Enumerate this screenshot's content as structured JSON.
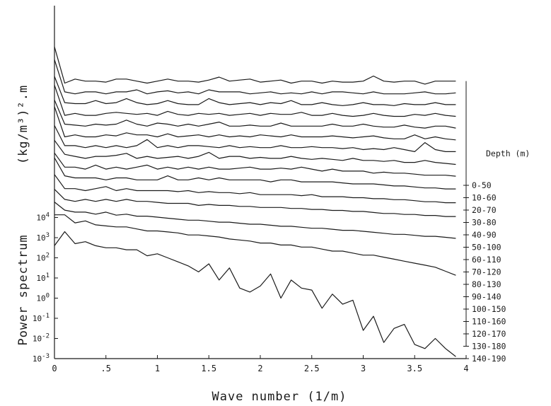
{
  "chart_data": {
    "type": "line",
    "title": "",
    "xlabel": "Wave number (1/m)",
    "ylabel_upper": "(kg/m³)².m",
    "ylabel_lower": "Power spectrum",
    "xlim": [
      0,
      4
    ],
    "ylim_exponent": [
      -3,
      4.2
    ],
    "y_scale": "log",
    "x_ticks": [
      "0",
      ".5",
      "1",
      "1.5",
      "2",
      "2.5",
      "3",
      "3.5",
      "4"
    ],
    "x_tick_values": [
      0,
      0.5,
      1,
      1.5,
      2,
      2.5,
      3,
      3.5,
      4
    ],
    "y_ticks": [
      {
        "exp": 4,
        "base": "10",
        "sup": "4"
      },
      {
        "exp": 3,
        "base": "10",
        "sup": "3"
      },
      {
        "exp": 2,
        "base": "10",
        "sup": "2"
      },
      {
        "exp": 1,
        "base": "10",
        "sup": "1"
      },
      {
        "exp": 0,
        "base": "10",
        "sup": "0"
      },
      {
        "exp": -1,
        "base": "10",
        "sup": "-1"
      },
      {
        "exp": -2,
        "base": "10",
        "sup": "-2"
      },
      {
        "exp": -3,
        "base": "10",
        "sup": "-3"
      }
    ],
    "legend_title": "Depth (m)",
    "legend_placement": "right",
    "grid": false,
    "stacked_offset_note": "curves offset vertically; only the lowest (140-190) is on the absolute scale",
    "x": [
      0.0,
      0.1,
      0.2,
      0.3,
      0.4,
      0.5,
      0.6,
      0.7,
      0.8,
      0.9,
      1.0,
      1.1,
      1.2,
      1.3,
      1.4,
      1.5,
      1.6,
      1.7,
      1.8,
      1.9,
      2.0,
      2.1,
      2.2,
      2.3,
      2.4,
      2.5,
      2.6,
      2.7,
      2.8,
      2.9,
      3.0,
      3.1,
      3.2,
      3.3,
      3.4,
      3.5,
      3.6,
      3.7,
      3.8,
      3.9
    ],
    "series": [
      {
        "name": "0-50",
        "values": [
          5.0,
          3.2,
          3.4,
          3.3,
          3.3,
          3.25,
          3.4,
          3.4,
          3.3,
          3.2,
          3.3,
          3.4,
          3.3,
          3.3,
          3.25,
          3.35,
          3.5,
          3.3,
          3.35,
          3.4,
          3.25,
          3.3,
          3.35,
          3.2,
          3.3,
          3.3,
          3.2,
          3.3,
          3.25,
          3.25,
          3.3,
          3.55,
          3.3,
          3.25,
          3.3,
          3.3,
          3.15,
          3.3,
          3.3,
          3.3
        ]
      },
      {
        "name": "10-60",
        "values": [
          4.9,
          3.3,
          3.2,
          3.3,
          3.3,
          3.2,
          3.3,
          3.3,
          3.4,
          3.2,
          3.3,
          3.35,
          3.25,
          3.3,
          3.2,
          3.4,
          3.3,
          3.3,
          3.3,
          3.2,
          3.25,
          3.3,
          3.2,
          3.25,
          3.2,
          3.3,
          3.2,
          3.3,
          3.3,
          3.25,
          3.2,
          3.3,
          3.2,
          3.2,
          3.2,
          3.25,
          3.3,
          3.2,
          3.2,
          3.25
        ]
      },
      {
        "name": "20-70",
        "values": [
          4.6,
          3.3,
          3.25,
          3.25,
          3.4,
          3.25,
          3.3,
          3.5,
          3.3,
          3.2,
          3.25,
          3.4,
          3.25,
          3.2,
          3.2,
          3.5,
          3.3,
          3.2,
          3.25,
          3.3,
          3.2,
          3.3,
          3.25,
          3.4,
          3.2,
          3.2,
          3.3,
          3.2,
          3.15,
          3.2,
          3.3,
          3.2,
          3.2,
          3.15,
          3.25,
          3.2,
          3.2,
          3.3,
          3.2,
          3.2
        ]
      },
      {
        "name": "30-80",
        "values": [
          4.7,
          3.2,
          3.3,
          3.2,
          3.2,
          3.3,
          3.35,
          3.3,
          3.25,
          3.3,
          3.2,
          3.4,
          3.25,
          3.2,
          3.3,
          3.25,
          3.3,
          3.2,
          3.25,
          3.3,
          3.2,
          3.3,
          3.25,
          3.25,
          3.35,
          3.2,
          3.2,
          3.3,
          3.2,
          3.15,
          3.2,
          3.3,
          3.2,
          3.15,
          3.15,
          3.25,
          3.2,
          3.3,
          3.2,
          3.15
        ]
      },
      {
        "name": "40-90",
        "values": [
          4.5,
          3.3,
          3.25,
          3.2,
          3.3,
          3.25,
          3.3,
          3.5,
          3.3,
          3.2,
          3.35,
          3.3,
          3.2,
          3.3,
          3.2,
          3.3,
          3.4,
          3.2,
          3.2,
          3.25,
          3.2,
          3.2,
          3.35,
          3.2,
          3.2,
          3.2,
          3.2,
          3.3,
          3.2,
          3.2,
          3.3,
          3.2,
          3.15,
          3.15,
          3.25,
          3.15,
          3.1,
          3.2,
          3.2,
          3.1
        ]
      },
      {
        "name": "50-100",
        "values": [
          4.7,
          3.2,
          3.3,
          3.2,
          3.2,
          3.3,
          3.25,
          3.4,
          3.3,
          3.3,
          3.2,
          3.35,
          3.2,
          3.25,
          3.3,
          3.2,
          3.3,
          3.2,
          3.25,
          3.2,
          3.3,
          3.25,
          3.2,
          3.3,
          3.2,
          3.2,
          3.2,
          3.25,
          3.2,
          3.15,
          3.2,
          3.25,
          3.15,
          3.1,
          3.1,
          3.3,
          3.1,
          3.2,
          3.1,
          3.05
        ]
      },
      {
        "name": "60-110",
        "values": [
          4.3,
          3.3,
          3.3,
          3.2,
          3.3,
          3.2,
          3.3,
          3.2,
          3.3,
          3.6,
          3.2,
          3.3,
          3.2,
          3.3,
          3.3,
          3.25,
          3.2,
          3.3,
          3.2,
          3.25,
          3.2,
          3.2,
          3.3,
          3.2,
          3.2,
          3.25,
          3.2,
          3.2,
          3.15,
          3.2,
          3.1,
          3.15,
          3.1,
          3.2,
          3.1,
          3.0,
          3.45,
          3.1,
          3.0,
          3.0
        ]
      },
      {
        "name": "70-120",
        "values": [
          4.1,
          3.4,
          3.3,
          3.2,
          3.3,
          3.3,
          3.35,
          3.45,
          3.2,
          3.3,
          3.2,
          3.25,
          3.3,
          3.2,
          3.3,
          3.5,
          3.2,
          3.3,
          3.3,
          3.2,
          3.25,
          3.2,
          3.2,
          3.3,
          3.2,
          3.15,
          3.2,
          3.15,
          3.1,
          3.2,
          3.1,
          3.1,
          3.05,
          3.1,
          3.0,
          3.0,
          3.1,
          3.0,
          2.95,
          2.9
        ]
      },
      {
        "name": "80-130",
        "values": [
          4.0,
          3.3,
          3.3,
          3.2,
          3.4,
          3.2,
          3.3,
          3.2,
          3.3,
          3.4,
          3.2,
          3.3,
          3.2,
          3.3,
          3.2,
          3.3,
          3.2,
          3.2,
          3.25,
          3.3,
          3.2,
          3.2,
          3.25,
          3.2,
          3.3,
          3.2,
          3.1,
          3.2,
          3.1,
          3.1,
          3.1,
          3.0,
          3.05,
          3.0,
          3.0,
          2.95,
          2.9,
          2.9,
          2.9,
          2.85
        ]
      },
      {
        "name": "90-140",
        "values": [
          4.3,
          3.4,
          3.3,
          3.3,
          3.3,
          3.2,
          3.3,
          3.3,
          3.2,
          3.2,
          3.2,
          3.4,
          3.2,
          3.2,
          3.3,
          3.2,
          3.3,
          3.2,
          3.2,
          3.2,
          3.2,
          3.1,
          3.2,
          3.2,
          3.1,
          3.1,
          3.1,
          3.1,
          3.05,
          3.0,
          3.0,
          3.0,
          2.95,
          2.9,
          2.9,
          2.85,
          2.8,
          2.8,
          2.75,
          2.75
        ]
      },
      {
        "name": "100-150",
        "values": [
          4.0,
          3.3,
          3.3,
          3.2,
          3.3,
          3.4,
          3.2,
          3.3,
          3.2,
          3.2,
          3.2,
          3.2,
          3.15,
          3.2,
          3.1,
          3.15,
          3.1,
          3.1,
          3.05,
          3.1,
          3.0,
          3.0,
          3.0,
          3.0,
          2.95,
          3.0,
          2.9,
          2.9,
          2.9,
          2.85,
          2.85,
          2.8,
          2.8,
          2.75,
          2.75,
          2.7,
          2.65,
          2.65,
          2.6,
          2.6
        ]
      },
      {
        "name": "110-160",
        "values": [
          3.8,
          3.3,
          3.2,
          3.3,
          3.2,
          3.3,
          3.2,
          3.3,
          3.2,
          3.2,
          3.15,
          3.1,
          3.1,
          3.1,
          3.0,
          3.05,
          3.0,
          3.0,
          2.95,
          2.95,
          2.9,
          2.9,
          2.9,
          2.85,
          2.85,
          2.8,
          2.8,
          2.75,
          2.75,
          2.7,
          2.7,
          2.65,
          2.6,
          2.6,
          2.55,
          2.55,
          2.5,
          2.5,
          2.45,
          2.45
        ]
      },
      {
        "name": "120-170",
        "values": [
          3.7,
          3.3,
          3.2,
          3.2,
          3.1,
          3.2,
          3.05,
          3.1,
          3.0,
          3.0,
          2.95,
          2.9,
          2.85,
          2.8,
          2.8,
          2.75,
          2.7,
          2.7,
          2.65,
          2.6,
          2.6,
          2.55,
          2.5,
          2.5,
          2.45,
          2.4,
          2.4,
          2.35,
          2.3,
          2.3,
          2.25,
          2.2,
          2.15,
          2.1,
          2.1,
          2.05,
          2.0,
          2.0,
          1.95,
          1.9
        ]
      },
      {
        "name": "130-180",
        "values": [
          3.6,
          3.6,
          3.2,
          3.3,
          3.1,
          3.05,
          3.0,
          3.0,
          2.9,
          2.8,
          2.8,
          2.75,
          2.7,
          2.6,
          2.6,
          2.55,
          2.5,
          2.4,
          2.35,
          2.3,
          2.2,
          2.2,
          2.1,
          2.1,
          2.0,
          2.0,
          1.9,
          1.8,
          1.8,
          1.7,
          1.6,
          1.6,
          1.5,
          1.4,
          1.3,
          1.2,
          1.1,
          1.0,
          0.8,
          0.6
        ]
      },
      {
        "name": "140-190",
        "values": [
          2.6,
          3.3,
          2.7,
          2.8,
          2.6,
          2.5,
          2.5,
          2.4,
          2.4,
          2.1,
          2.2,
          2.0,
          1.8,
          1.6,
          1.3,
          1.7,
          0.9,
          1.5,
          0.5,
          0.3,
          0.6,
          1.2,
          0.0,
          0.9,
          0.5,
          0.4,
          -0.5,
          0.2,
          -0.3,
          -0.1,
          -1.6,
          -0.9,
          -2.2,
          -1.5,
          -1.3,
          -2.3,
          -2.5,
          -2.0,
          -2.5,
          -2.9
        ]
      }
    ]
  }
}
